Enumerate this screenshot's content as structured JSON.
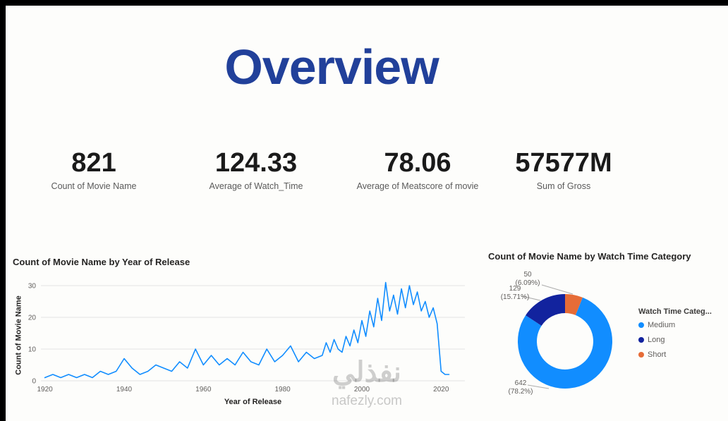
{
  "page": {
    "background": "#FDFDFB",
    "accent_blue": "#21409A"
  },
  "title": "Overview",
  "kpis": [
    {
      "value": "821",
      "label": "Count of Movie Name"
    },
    {
      "value": "124.33",
      "label": "Average of Watch_Time"
    },
    {
      "value": "78.06",
      "label": "Average of Meatscore of movie"
    },
    {
      "value": "57577M",
      "label": "Sum of Gross"
    }
  ],
  "watermark": {
    "arabic": "نفذلي",
    "domain": "nafezly.com"
  },
  "chart_data": [
    {
      "type": "line",
      "title": "Count of Movie Name by Year of Release",
      "xlabel": "Year of Release",
      "ylabel": "Count of Movie Name",
      "x_ticks": [
        1920,
        1940,
        1960,
        1980,
        2000,
        2020
      ],
      "y_ticks": [
        0,
        10,
        20,
        30
      ],
      "xlim": [
        1919,
        2026
      ],
      "ylim": [
        0,
        32
      ],
      "grid": true,
      "line_color": "#118DFF",
      "series": [
        {
          "name": "Count of Movie Name",
          "x": [
            1920,
            1922,
            1924,
            1926,
            1928,
            1930,
            1932,
            1934,
            1936,
            1938,
            1940,
            1942,
            1944,
            1946,
            1948,
            1950,
            1952,
            1954,
            1956,
            1958,
            1960,
            1962,
            1964,
            1966,
            1968,
            1970,
            1972,
            1974,
            1976,
            1978,
            1980,
            1982,
            1984,
            1986,
            1988,
            1990,
            1991,
            1992,
            1993,
            1994,
            1995,
            1996,
            1997,
            1998,
            1999,
            2000,
            2001,
            2002,
            2003,
            2004,
            2005,
            2006,
            2007,
            2008,
            2009,
            2010,
            2011,
            2012,
            2013,
            2014,
            2015,
            2016,
            2017,
            2018,
            2019,
            2020,
            2021,
            2022
          ],
          "y": [
            1,
            2,
            1,
            2,
            1,
            2,
            1,
            3,
            2,
            3,
            7,
            4,
            2,
            3,
            5,
            4,
            3,
            6,
            4,
            10,
            5,
            8,
            5,
            7,
            5,
            9,
            6,
            5,
            10,
            6,
            8,
            11,
            6,
            9,
            7,
            8,
            12,
            9,
            13,
            10,
            9,
            14,
            11,
            16,
            12,
            19,
            14,
            22,
            17,
            26,
            19,
            31,
            22,
            27,
            21,
            29,
            23,
            30,
            24,
            28,
            22,
            25,
            20,
            23,
            18,
            3,
            2,
            2
          ]
        }
      ]
    },
    {
      "type": "donut",
      "title": "Count of Movie Name by Watch Time Category",
      "legend_title": "Watch Time Categ...",
      "legend_position": "right",
      "slices": [
        {
          "label": "Short",
          "value": 50,
          "pct": "6.09%",
          "color": "#E66C37"
        },
        {
          "label": "Medium",
          "value": 642,
          "pct": "78.2%",
          "color": "#118DFF"
        },
        {
          "label": "Long",
          "value": 129,
          "pct": "15.71%",
          "color": "#12239E"
        }
      ],
      "callouts": [
        {
          "line1": "50",
          "line2": "(6.09%)"
        },
        {
          "line1": "129",
          "line2": "(15.71%)"
        },
        {
          "line1": "642",
          "line2": "(78.2%)"
        }
      ],
      "legend": [
        {
          "label": "Medium",
          "color": "#118DFF"
        },
        {
          "label": "Long",
          "color": "#12239E"
        },
        {
          "label": "Short",
          "color": "#E66C37"
        }
      ]
    }
  ]
}
